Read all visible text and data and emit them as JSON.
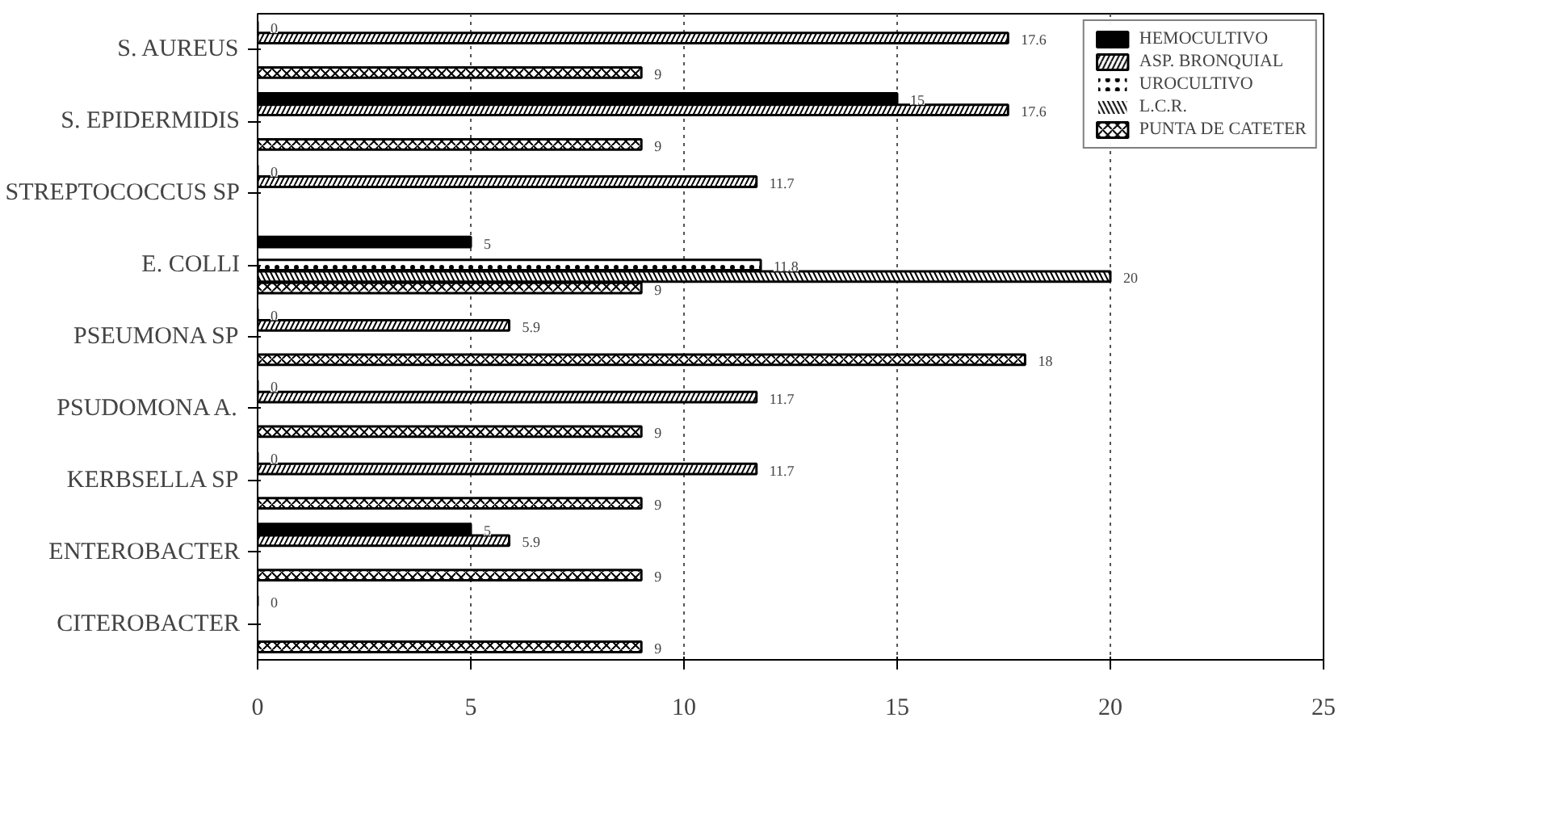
{
  "chart_data": {
    "type": "bar",
    "orientation": "horizontal",
    "categories": [
      "S. AUREUS",
      "S. EPIDERMIDIS",
      "STREPTOCOCCUS SP",
      "E. COLLI",
      "PSEUMONA SP",
      "PSUDOMONA A.",
      "KERBSELLA SP",
      "ENTEROBACTER",
      "CITEROBACTER"
    ],
    "series": [
      {
        "name": "HEMOCULTIVO",
        "color": "#000000",
        "values": [
          0,
          15,
          0,
          5,
          0,
          0,
          0,
          5,
          0
        ],
        "value_labels": [
          "0",
          "15",
          "0",
          "5",
          "0",
          "0",
          "0",
          "5",
          "0"
        ]
      },
      {
        "name": "ASP. BRONQUIAL",
        "color": "#ffffff",
        "values": [
          17.6,
          17.6,
          11.7,
          0,
          5.9,
          11.7,
          11.7,
          5.9,
          0
        ],
        "value_labels": [
          "17.6",
          "17.6",
          "11.7",
          null,
          "5.9",
          "11.7",
          "11.7",
          "5.9",
          null
        ]
      },
      {
        "name": "UROCULTIVO",
        "color": "#ffffff",
        "values": [
          0,
          0,
          0,
          11.8,
          0,
          0,
          0,
          0,
          0
        ],
        "value_labels": [
          null,
          null,
          null,
          "11.8",
          null,
          null,
          null,
          null,
          null
        ]
      },
      {
        "name": "L.C.R.",
        "color": "#ffffff",
        "values": [
          0,
          0,
          0,
          20,
          0,
          0,
          0,
          0,
          0
        ],
        "value_labels": [
          null,
          null,
          null,
          "20",
          null,
          null,
          null,
          null,
          null
        ]
      },
      {
        "name": "PUNTA DE CATETER",
        "color": "#ffffff",
        "values": [
          9,
          9,
          0,
          9,
          18,
          9,
          9,
          9,
          9
        ],
        "value_labels": [
          "9",
          "9",
          null,
          "9",
          "18",
          "9",
          "9",
          "9",
          "9"
        ]
      }
    ],
    "xlim": [
      0,
      25
    ],
    "xticks": [
      0,
      5,
      10,
      15,
      20,
      25
    ],
    "grid": "x",
    "legend": "top right"
  }
}
